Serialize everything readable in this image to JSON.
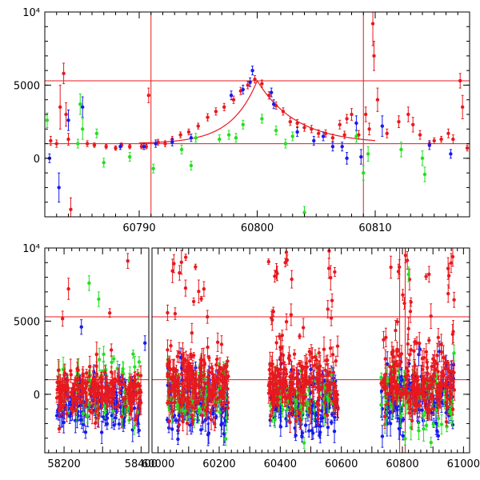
{
  "colors": {
    "red": "#e8191e",
    "green": "#22e01e",
    "blue": "#1a1aeb",
    "axis": "#000000"
  },
  "chart_data": [
    {
      "type": "scatter",
      "panel": "top",
      "xlim": [
        60782,
        60818
      ],
      "ylim": [
        -4000,
        10000
      ],
      "x_ticks": [
        {
          "value": 60790,
          "label": "60790"
        },
        {
          "value": 60800,
          "label": "60800"
        },
        {
          "value": 60810,
          "label": "60810"
        }
      ],
      "y_ticks": [
        {
          "value": 0,
          "label": "0"
        },
        {
          "value": 5000,
          "label": "5000"
        },
        {
          "value": 10000,
          "label": "10⁴"
        }
      ],
      "hlines": [
        1000,
        5300
      ],
      "vlines": [
        60791.0,
        60809.0
      ],
      "model_curve": {
        "color": "red",
        "t0": 60800.0,
        "peak": 5300,
        "baseline": 1000,
        "tau_rise": 2.2,
        "tau_fall": 3.3,
        "range": [
          60790,
          60810
        ]
      },
      "series": [
        {
          "color": "red",
          "points": [
            [
              60782.5,
              1200,
              300
            ],
            [
              60783.0,
              1000,
              250
            ],
            [
              60783.3,
              3500,
              1500
            ],
            [
              60783.6,
              5800,
              700
            ],
            [
              60783.8,
              3000,
              800
            ],
            [
              60784.0,
              1300,
              400
            ],
            [
              60784.2,
              -3500,
              800
            ],
            [
              60785.6,
              1000,
              200
            ],
            [
              60786.2,
              900,
              150
            ],
            [
              60787.2,
              800,
              150
            ],
            [
              60788.0,
              700,
              150
            ],
            [
              60788.5,
              900,
              150
            ],
            [
              60789.2,
              800,
              150
            ],
            [
              60790.2,
              800,
              150
            ],
            [
              60790.6,
              800,
              150
            ],
            [
              60790.8,
              4300,
              500
            ],
            [
              60791.6,
              1100,
              200
            ],
            [
              60792.2,
              1000,
              200
            ],
            [
              60792.8,
              1300,
              200
            ],
            [
              60793.5,
              1600,
              200
            ],
            [
              60794.2,
              1800,
              200
            ],
            [
              60795.0,
              2200,
              200
            ],
            [
              60795.8,
              2800,
              250
            ],
            [
              60796.5,
              3200,
              250
            ],
            [
              60797.2,
              3500,
              250
            ],
            [
              60798.0,
              4000,
              250
            ],
            [
              60798.6,
              4600,
              250
            ],
            [
              60799.2,
              5000,
              250
            ],
            [
              60799.8,
              5400,
              250
            ],
            [
              60800.4,
              5100,
              250
            ],
            [
              60801.0,
              4300,
              250
            ],
            [
              60801.6,
              3600,
              250
            ],
            [
              60802.2,
              3200,
              250
            ],
            [
              60802.8,
              2500,
              250
            ],
            [
              60803.4,
              2400,
              250
            ],
            [
              60804.0,
              2100,
              250
            ],
            [
              60804.6,
              2000,
              250
            ],
            [
              60805.2,
              1700,
              250
            ],
            [
              60805.8,
              1700,
              250
            ],
            [
              60806.4,
              1400,
              250
            ],
            [
              60807.0,
              2300,
              300
            ],
            [
              60807.4,
              1600,
              250
            ],
            [
              60807.6,
              2700,
              300
            ],
            [
              60808.0,
              3000,
              400
            ],
            [
              60808.6,
              1600,
              300
            ],
            [
              60809.2,
              3000,
              500
            ],
            [
              60809.5,
              2000,
              400
            ],
            [
              60809.8,
              9200,
              1500
            ],
            [
              60809.9,
              7000,
              1000
            ],
            [
              60810.2,
              4000,
              800
            ],
            [
              60811.0,
              1700,
              300
            ],
            [
              60812.0,
              2500,
              400
            ],
            [
              60812.8,
              3000,
              500
            ],
            [
              60813.2,
              2300,
              500
            ],
            [
              60813.8,
              1600,
              300
            ],
            [
              60814.6,
              1000,
              200
            ],
            [
              60815.0,
              1200,
              200
            ],
            [
              60815.6,
              1300,
              200
            ],
            [
              60816.2,
              1700,
              300
            ],
            [
              60816.6,
              1300,
              300
            ],
            [
              60817.2,
              5300,
              500
            ],
            [
              60817.4,
              3500,
              800
            ],
            [
              60817.8,
              700,
              200
            ]
          ]
        },
        {
          "color": "green",
          "points": [
            [
              60782.2,
              2600,
              500
            ],
            [
              60784.8,
              1000,
              300
            ],
            [
              60785.0,
              3700,
              700
            ],
            [
              60785.2,
              2000,
              700
            ],
            [
              60786.4,
              1700,
              300
            ],
            [
              60787.0,
              -300,
              300
            ],
            [
              60789.2,
              100,
              300
            ],
            [
              60791.2,
              -700,
              300
            ],
            [
              60793.6,
              600,
              300
            ],
            [
              60794.4,
              -500,
              300
            ],
            [
              60794.8,
              1400,
              300
            ],
            [
              60796.8,
              1300,
              300
            ],
            [
              60797.6,
              1600,
              300
            ],
            [
              60798.2,
              1400,
              300
            ],
            [
              60798.8,
              2300,
              300
            ],
            [
              60800.4,
              2700,
              300
            ],
            [
              60801.6,
              1900,
              300
            ],
            [
              60802.4,
              1000,
              300
            ],
            [
              60803.0,
              1500,
              300
            ],
            [
              60804.0,
              -3700,
              400
            ],
            [
              60808.4,
              1500,
              400
            ],
            [
              60809.0,
              -1000,
              500
            ],
            [
              60809.4,
              300,
              500
            ],
            [
              60812.2,
              600,
              500
            ],
            [
              60814.0,
              0,
              500
            ],
            [
              60814.2,
              -1100,
              500
            ]
          ]
        },
        {
          "color": "blue",
          "points": [
            [
              60782.4,
              0,
              300
            ],
            [
              60783.2,
              -2000,
              1000
            ],
            [
              60784.0,
              2600,
              700
            ],
            [
              60785.2,
              3500,
              700
            ],
            [
              60788.4,
              800,
              200
            ],
            [
              60790.4,
              800,
              200
            ],
            [
              60791.4,
              1000,
              250
            ],
            [
              60792.8,
              1100,
              250
            ],
            [
              60794.4,
              1400,
              250
            ],
            [
              60797.8,
              4300,
              300
            ],
            [
              60798.8,
              4700,
              300
            ],
            [
              60799.4,
              5200,
              300
            ],
            [
              60799.6,
              6000,
              300
            ],
            [
              60801.2,
              4500,
              300
            ],
            [
              60801.4,
              3700,
              300
            ],
            [
              60803.4,
              1800,
              300
            ],
            [
              60804.8,
              1200,
              300
            ],
            [
              60805.6,
              1500,
              300
            ],
            [
              60806.4,
              800,
              300
            ],
            [
              60807.2,
              800,
              300
            ],
            [
              60807.6,
              0,
              400
            ],
            [
              60808.4,
              2400,
              500
            ],
            [
              60808.8,
              100,
              500
            ],
            [
              60810.6,
              2200,
              700
            ],
            [
              60814.6,
              900,
              300
            ],
            [
              60816.4,
              300,
              300
            ]
          ]
        }
      ]
    },
    {
      "type": "scatter",
      "panel": "bottom",
      "broken_x_axis": true,
      "segments": [
        {
          "xlim": [
            58150,
            58420
          ],
          "ticks": [
            {
              "value": 58200,
              "label": "58200"
            },
            {
              "value": 58400,
              "label": "58400"
            }
          ]
        },
        {
          "xlim": [
            59980,
            61020
          ],
          "ticks": [
            {
              "value": 60000,
              "label": "60000"
            },
            {
              "value": 60200,
              "label": "60200"
            },
            {
              "value": 60400,
              "label": "60400"
            },
            {
              "value": 60600,
              "label": "60600"
            },
            {
              "value": 60800,
              "label": "60800"
            },
            {
              "value": 61000,
              "label": "61000"
            }
          ]
        }
      ],
      "ylim": [
        -4000,
        10000
      ],
      "y_ticks": [
        {
          "value": 0,
          "label": "0"
        },
        {
          "value": 5000,
          "label": "5000"
        },
        {
          "value": 10000,
          "label": "10⁴"
        }
      ],
      "hlines": [
        1000,
        5300
      ],
      "vlines": [
        60791.0,
        60809.0
      ],
      "observing_seasons": [
        {
          "range": [
            58180,
            58400
          ],
          "red_mean": 200,
          "red_spread": 1400,
          "red_outlier_frac": 0.03,
          "blue_mean": -600,
          "blue_spread": 1500,
          "green_mean": 600,
          "green_spread": 2500
        },
        {
          "range": [
            60030,
            60230
          ],
          "red_mean": 700,
          "red_spread": 1900,
          "red_outlier_frac": 0.09,
          "blue_mean": -400,
          "blue_spread": 2000,
          "green_mean": 0,
          "green_spread": 2000
        },
        {
          "range": [
            60360,
            60590
          ],
          "red_mean": 600,
          "red_spread": 2200,
          "red_outlier_frac": 0.1,
          "blue_mean": -700,
          "blue_spread": 2100,
          "green_mean": -300,
          "green_spread": 2000
        },
        {
          "range": [
            60730,
            60970
          ],
          "red_mean": 800,
          "red_spread": 2200,
          "red_outlier_frac": 0.12,
          "blue_mean": -300,
          "blue_spread": 2200,
          "green_mean": -200,
          "green_spread": 2300
        }
      ],
      "points_per_season": {
        "red": 230,
        "blue": 150,
        "green": 70
      },
      "highlighted_points": [
        {
          "color": "green",
          "x": 58265,
          "y": 7600
        },
        {
          "color": "green",
          "x": 58290,
          "y": 6500
        },
        {
          "color": "blue",
          "x": 58245,
          "y": 4600
        },
        {
          "color": "blue",
          "x": 58410,
          "y": 3500
        },
        {
          "color": "red",
          "x": 60070,
          "y": 8300
        },
        {
          "color": "red",
          "x": 60150,
          "y": 7200
        },
        {
          "color": "red",
          "x": 60420,
          "y": 9700
        },
        {
          "color": "red",
          "x": 60560,
          "y": 9800
        },
        {
          "color": "red",
          "x": 60790,
          "y": 8700
        },
        {
          "color": "red",
          "x": 60810,
          "y": 9500
        },
        {
          "color": "green",
          "x": 60820,
          "y": 8200
        }
      ]
    }
  ]
}
